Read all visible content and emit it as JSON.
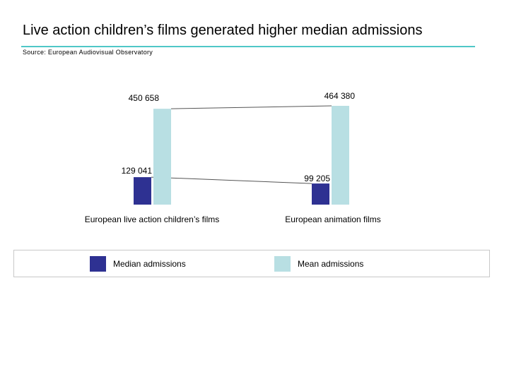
{
  "title": "Live action children’s films generated higher median admissions",
  "source": "Source: European Audiovisual Observatory",
  "colors": {
    "median": "#2e3192",
    "mean": "#b8dfe3",
    "title_rule": "#4fc7c7"
  },
  "chart_data": {
    "type": "bar",
    "categories": [
      "European live action children’s films",
      "European animation films"
    ],
    "series": [
      {
        "name": "Median admissions",
        "values": [
          129041,
          99205
        ],
        "labels": [
          "129 041",
          "99 205"
        ]
      },
      {
        "name": "Mean admissions",
        "values": [
          450658,
          464380
        ],
        "labels": [
          "450 658",
          "464 380"
        ]
      }
    ],
    "ylim": [
      0,
      464380
    ],
    "grid": false,
    "legend_position": "bottom"
  }
}
